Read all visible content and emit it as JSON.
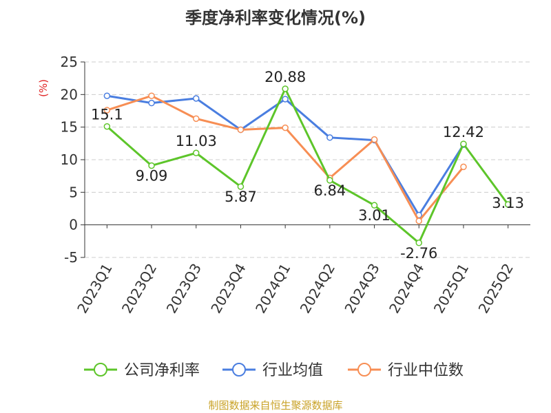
{
  "chart_data": {
    "type": "line",
    "title": "季度净利率变化情况(%)",
    "ylabel": "(%)",
    "xlabel": "",
    "ylim": [
      -5,
      25
    ],
    "yticks": [
      -5,
      0,
      5,
      10,
      15,
      20,
      25
    ],
    "grid": true,
    "legend_position": "bottom",
    "categories": [
      "2023Q1",
      "2023Q2",
      "2023Q3",
      "2023Q4",
      "2024Q1",
      "2024Q2",
      "2024Q3",
      "2024Q4",
      "2025Q1",
      "2025Q2"
    ],
    "series": [
      {
        "name": "公司净利率",
        "color": "#5dc52a",
        "values": [
          15.1,
          9.09,
          11.03,
          5.87,
          20.88,
          6.84,
          3.01,
          -2.76,
          12.42,
          3.13
        ],
        "labels": [
          "15.1",
          "9.09",
          "11.03",
          "5.87",
          "20.88",
          "6.84",
          "3.01",
          "-2.76",
          "12.42",
          "3.13"
        ]
      },
      {
        "name": "行业均值",
        "color": "#4a7ee0",
        "values": [
          19.8,
          18.7,
          19.4,
          14.6,
          19.3,
          13.4,
          13.0,
          1.5,
          12.3,
          null
        ]
      },
      {
        "name": "行业中位数",
        "color": "#f78e54",
        "values": [
          17.6,
          19.8,
          16.3,
          14.6,
          14.9,
          7.2,
          13.1,
          0.6,
          8.9,
          null
        ]
      }
    ]
  },
  "source_text": "制图数据来自恒生聚源数据库"
}
